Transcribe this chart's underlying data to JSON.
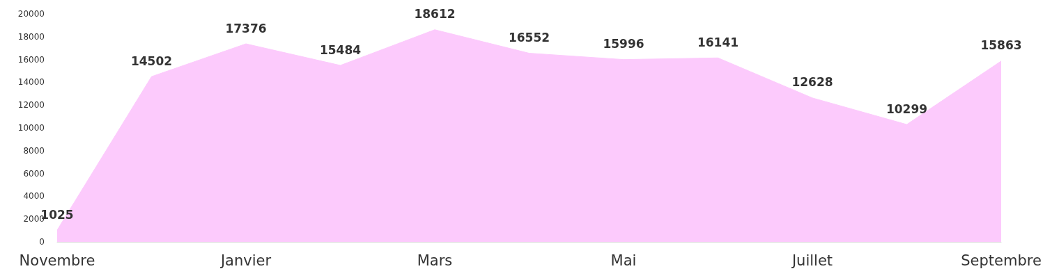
{
  "chart_data": {
    "type": "area",
    "categories": [
      "Novembre",
      null,
      "Janvier",
      null,
      "Mars",
      null,
      "Mai",
      null,
      "Juillet",
      null,
      "Septembre"
    ],
    "values": [
      1025,
      14502,
      17376,
      15484,
      18612,
      16552,
      15996,
      16141,
      12628,
      10299,
      15863
    ],
    "color": "#fccafc",
    "ylim": [
      0,
      20000
    ],
    "yticks": [
      0,
      2000,
      4000,
      6000,
      8000,
      10000,
      12000,
      14000,
      16000,
      18000,
      20000
    ],
    "data_labels": true
  }
}
